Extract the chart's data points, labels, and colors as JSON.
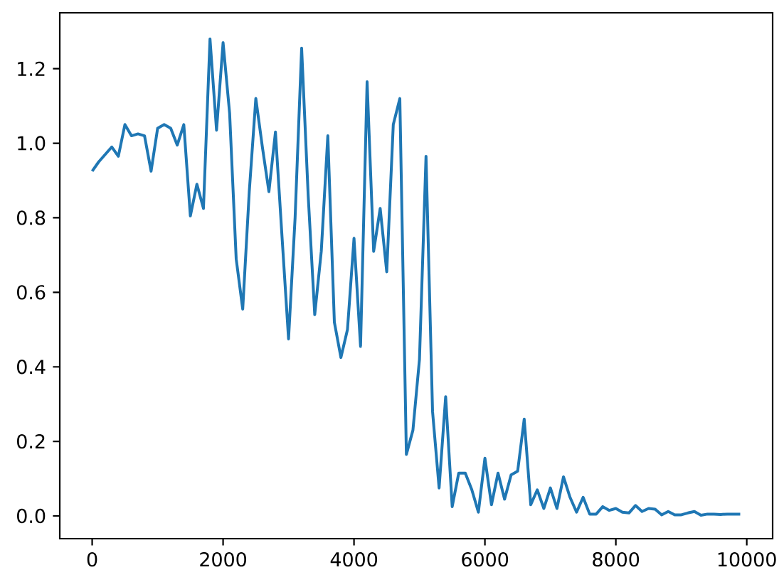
{
  "chart_data": {
    "type": "line",
    "color": "#1f77b4",
    "x": [
      0,
      100,
      200,
      300,
      400,
      500,
      600,
      700,
      800,
      900,
      1000,
      1100,
      1200,
      1300,
      1400,
      1500,
      1600,
      1700,
      1800,
      1900,
      2000,
      2100,
      2200,
      2300,
      2400,
      2500,
      2600,
      2700,
      2800,
      2900,
      3000,
      3100,
      3200,
      3300,
      3400,
      3500,
      3600,
      3700,
      3800,
      3900,
      4000,
      4100,
      4200,
      4300,
      4400,
      4500,
      4600,
      4700,
      4800,
      4900,
      5000,
      5100,
      5200,
      5300,
      5400,
      5500,
      5600,
      5700,
      5800,
      5900,
      6000,
      6100,
      6200,
      6300,
      6400,
      6500,
      6600,
      6700,
      6800,
      6900,
      7000,
      7100,
      7200,
      7300,
      7400,
      7500,
      7600,
      7700,
      7800,
      7900,
      8000,
      8100,
      8200,
      8300,
      8400,
      8500,
      8600,
      8700,
      8800,
      8900,
      9000,
      9100,
      9200,
      9300,
      9400,
      9500,
      9600,
      9700,
      9800,
      9900
    ],
    "values": [
      0.925,
      0.95,
      0.97,
      0.99,
      0.965,
      1.05,
      1.02,
      1.025,
      1.02,
      0.925,
      1.04,
      1.05,
      1.04,
      0.995,
      1.05,
      0.805,
      0.89,
      0.825,
      1.28,
      1.035,
      1.27,
      1.08,
      0.69,
      0.555,
      0.87,
      1.12,
      0.99,
      0.87,
      1.03,
      0.75,
      0.475,
      0.8,
      1.255,
      0.86,
      0.54,
      0.71,
      1.02,
      0.52,
      0.425,
      0.5,
      0.745,
      0.455,
      1.165,
      0.71,
      0.825,
      0.655,
      1.05,
      1.12,
      0.165,
      0.23,
      0.42,
      0.965,
      0.28,
      0.075,
      0.32,
      0.025,
      0.115,
      0.115,
      0.07,
      0.01,
      0.155,
      0.03,
      0.115,
      0.045,
      0.11,
      0.12,
      0.26,
      0.03,
      0.07,
      0.02,
      0.075,
      0.02,
      0.105,
      0.05,
      0.01,
      0.05,
      0.005,
      0.005,
      0.025,
      0.015,
      0.02,
      0.01,
      0.008,
      0.028,
      0.012,
      0.02,
      0.018,
      0.003,
      0.012,
      0.003,
      0.003,
      0.008,
      0.012,
      0.002,
      0.005,
      0.005,
      0.004,
      0.005,
      0.005,
      0.005
    ],
    "xlim": [
      -495,
      10395
    ],
    "ylim": [
      -0.061,
      1.35
    ],
    "xticks": [
      0,
      2000,
      4000,
      6000,
      8000,
      10000
    ],
    "yticks": [
      {
        "value": 0,
        "label": "0.0"
      },
      {
        "value": 0.2,
        "label": "0.2"
      },
      {
        "value": 0.4,
        "label": "0.4"
      },
      {
        "value": 0.6,
        "label": "0.6"
      },
      {
        "value": 0.8,
        "label": "0.8"
      },
      {
        "value": 1.0,
        "label": "1.0"
      },
      {
        "value": 1.2,
        "label": "1.2"
      }
    ]
  }
}
